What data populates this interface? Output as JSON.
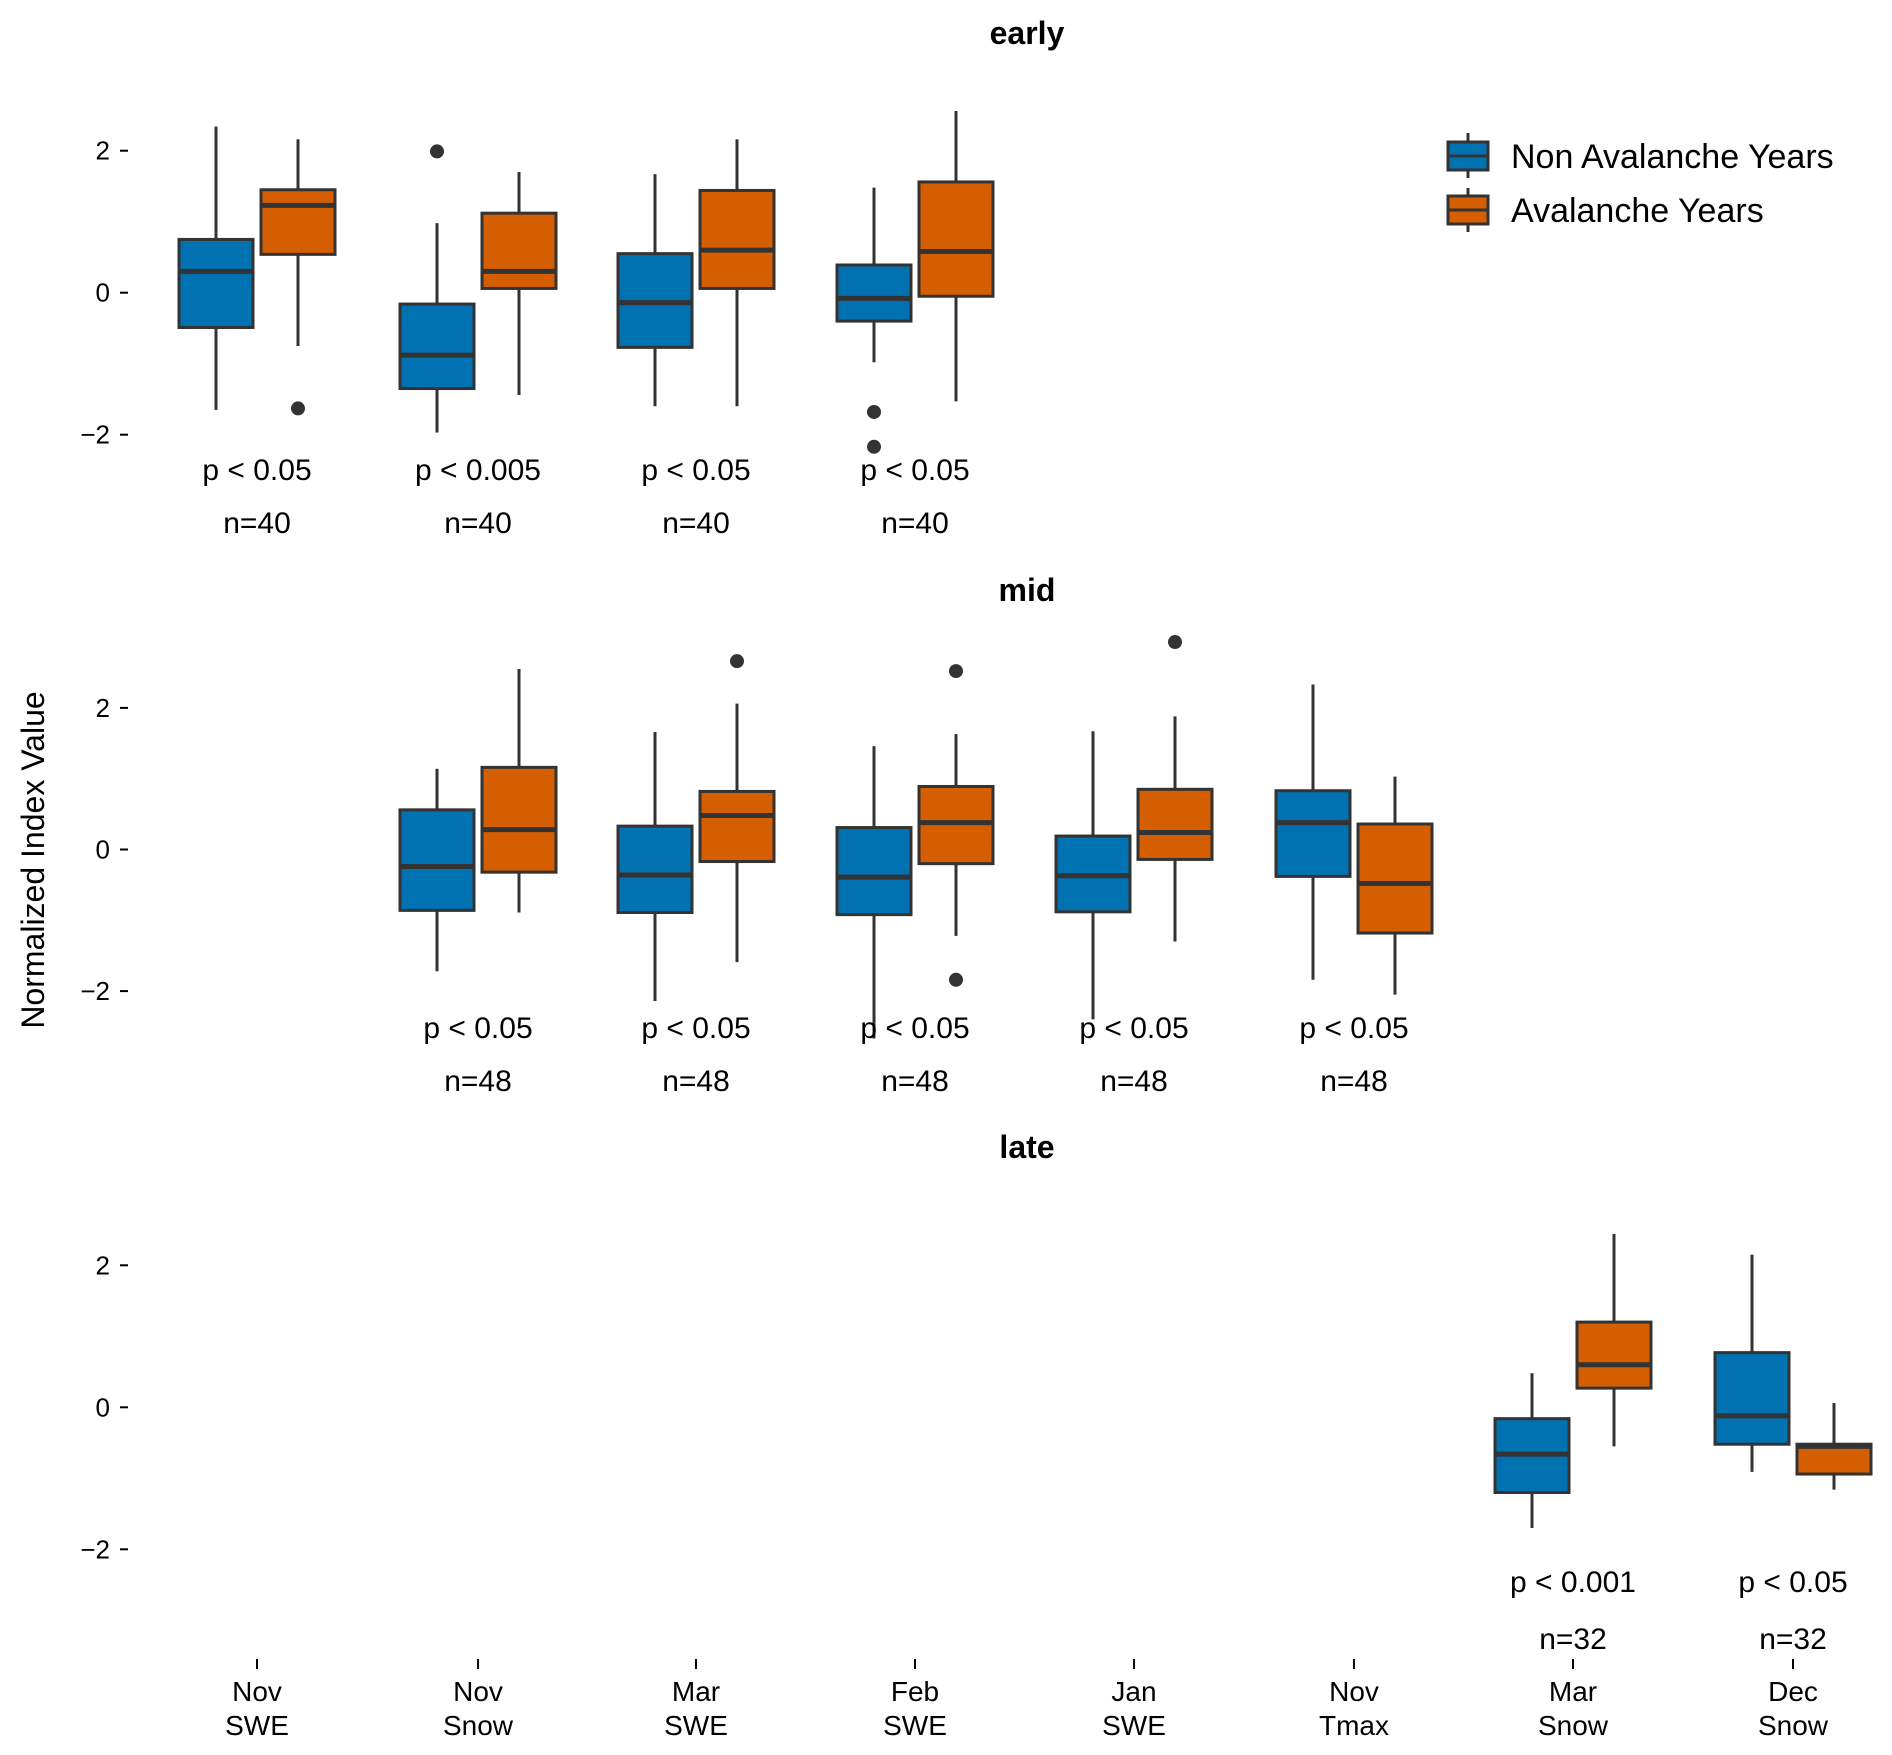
{
  "chart_data": {
    "type": "box",
    "ylabel": "Normalized Index Value",
    "xlabel": "",
    "ylim": [
      -2.6,
      2.8
    ],
    "yticks": [
      -2,
      0,
      2
    ],
    "grid": false,
    "legend": {
      "placement": "top-right",
      "entries": [
        {
          "name": "Non Avalanche Years",
          "color": "#0072B2"
        },
        {
          "name": "Avalanche Years",
          "color": "#D55E00"
        }
      ]
    },
    "categories": [
      {
        "line1": "Nov",
        "line2": "SWE"
      },
      {
        "line1": "Nov",
        "line2": "Snow"
      },
      {
        "line1": "Mar",
        "line2": "SWE"
      },
      {
        "line1": "Feb",
        "line2": "SWE"
      },
      {
        "line1": "Jan",
        "line2": "SWE"
      },
      {
        "line1": "Nov",
        "line2": "Tmax"
      },
      {
        "line1": "Mar",
        "line2": "Snow"
      },
      {
        "line1": "Dec",
        "line2": "Snow"
      }
    ],
    "panels": [
      {
        "title": "early",
        "groups": [
          {
            "category": 0,
            "p": "p < 0.05",
            "n": "n=40",
            "non_avalanche": {
              "whislo": -1.65,
              "q1": -0.49,
              "med": 0.3,
              "q3": 0.75,
              "whishi": 2.34,
              "fliers": []
            },
            "avalanche": {
              "whislo": -0.75,
              "q1": 0.54,
              "med": 1.23,
              "q3": 1.45,
              "whishi": 2.16,
              "fliers": [
                -1.63
              ]
            }
          },
          {
            "category": 1,
            "p": "p < 0.005",
            "n": "n=40",
            "non_avalanche": {
              "whislo": -1.97,
              "q1": -1.35,
              "med": -0.88,
              "q3": -0.16,
              "whishi": 0.98,
              "fliers": [
                1.99
              ]
            },
            "avalanche": {
              "whislo": -1.44,
              "q1": 0.06,
              "med": 0.3,
              "q3": 1.12,
              "whishi": 1.7,
              "fliers": []
            }
          },
          {
            "category": 2,
            "p": "p < 0.05",
            "n": "n=40",
            "non_avalanche": {
              "whislo": -1.6,
              "q1": -0.77,
              "med": -0.14,
              "q3": 0.55,
              "whishi": 1.67,
              "fliers": []
            },
            "avalanche": {
              "whislo": -1.6,
              "q1": 0.06,
              "med": 0.6,
              "q3": 1.44,
              "whishi": 2.16,
              "fliers": []
            }
          },
          {
            "category": 3,
            "p": "p < 0.05",
            "n": "n=40",
            "non_avalanche": {
              "whislo": -0.98,
              "q1": -0.4,
              "med": -0.08,
              "q3": 0.39,
              "whishi": 1.48,
              "fliers": [
                -1.68,
                -2.17
              ]
            },
            "avalanche": {
              "whislo": -1.53,
              "q1": -0.05,
              "med": 0.58,
              "q3": 1.56,
              "whishi": 2.56,
              "fliers": []
            }
          }
        ]
      },
      {
        "title": "mid",
        "groups": [
          {
            "category": 1,
            "p": "p < 0.05",
            "n": "n=48",
            "non_avalanche": {
              "whislo": -1.72,
              "q1": -0.86,
              "med": -0.24,
              "q3": 0.56,
              "whishi": 1.14,
              "fliers": []
            },
            "avalanche": {
              "whislo": -0.89,
              "q1": -0.32,
              "med": 0.28,
              "q3": 1.16,
              "whishi": 2.55,
              "fliers": []
            }
          },
          {
            "category": 2,
            "p": "p < 0.05",
            "n": "n=48",
            "non_avalanche": {
              "whislo": -2.14,
              "q1": -0.89,
              "med": -0.36,
              "q3": 0.33,
              "whishi": 1.66,
              "fliers": []
            },
            "avalanche": {
              "whislo": -1.59,
              "q1": -0.17,
              "med": 0.48,
              "q3": 0.82,
              "whishi": 2.06,
              "fliers": [
                2.66
              ]
            }
          },
          {
            "category": 3,
            "p": "p < 0.05",
            "n": "n=48",
            "non_avalanche": {
              "whislo": -2.67,
              "q1": -0.92,
              "med": -0.39,
              "q3": 0.31,
              "whishi": 1.46,
              "fliers": []
            },
            "avalanche": {
              "whislo": -1.22,
              "q1": -0.2,
              "med": 0.38,
              "q3": 0.89,
              "whishi": 1.63,
              "fliers": [
                2.52,
                -1.84
              ]
            }
          },
          {
            "category": 4,
            "p": "p < 0.05",
            "n": "n=48",
            "non_avalanche": {
              "whislo": -2.4,
              "q1": -0.88,
              "med": -0.37,
              "q3": 0.19,
              "whishi": 1.67,
              "fliers": []
            },
            "avalanche": {
              "whislo": -1.3,
              "q1": -0.14,
              "med": 0.24,
              "q3": 0.85,
              "whishi": 1.88,
              "fliers": [
                2.93
              ]
            }
          },
          {
            "category": 5,
            "p": "p < 0.05",
            "n": "n=48",
            "non_avalanche": {
              "whislo": -1.84,
              "q1": -0.38,
              "med": 0.38,
              "q3": 0.83,
              "whishi": 2.33,
              "fliers": []
            },
            "avalanche": {
              "whislo": -2.05,
              "q1": -1.18,
              "med": -0.48,
              "q3": 0.36,
              "whishi": 1.03,
              "fliers": []
            }
          }
        ]
      },
      {
        "title": "late",
        "groups": [
          {
            "category": 6,
            "p": "p < 0.001",
            "n": "n=32",
            "non_avalanche": {
              "whislo": -1.7,
              "q1": -1.2,
              "med": -0.66,
              "q3": -0.16,
              "whishi": 0.48,
              "fliers": []
            },
            "avalanche": {
              "whislo": -0.55,
              "q1": 0.27,
              "med": 0.6,
              "q3": 1.2,
              "whishi": 2.44,
              "fliers": []
            }
          },
          {
            "category": 7,
            "p": "p < 0.05",
            "n": "n=32",
            "non_avalanche": {
              "whislo": -0.91,
              "q1": -0.52,
              "med": -0.12,
              "q3": 0.77,
              "whishi": 2.15,
              "fliers": []
            },
            "avalanche": {
              "whislo": -1.16,
              "q1": -0.94,
              "med": -0.55,
              "q3": -0.52,
              "whishi": 0.06,
              "fliers": []
            }
          }
        ]
      }
    ],
    "colors": {
      "non_avalanche": "#0072B2",
      "avalanche": "#D55E00",
      "line": "#333333"
    }
  }
}
